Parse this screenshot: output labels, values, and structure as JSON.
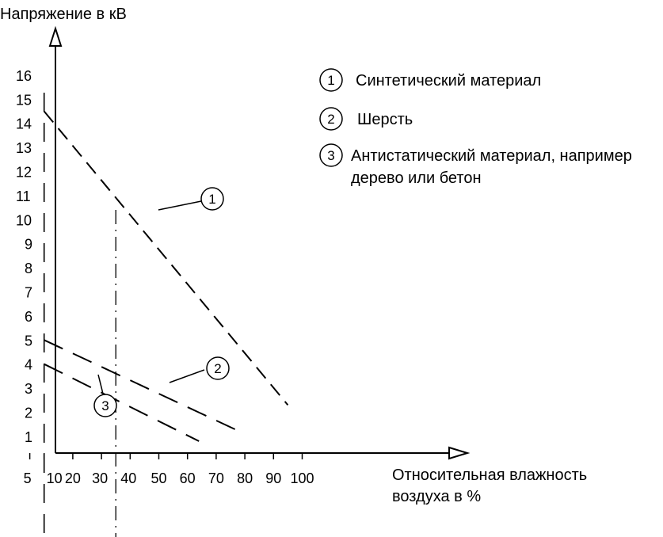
{
  "chart_data": {
    "type": "line",
    "ylabel": "Напряжение в кВ",
    "xlabel_lines": [
      "Относительная влажность",
      "воздуха в %"
    ],
    "x_ticks": [
      5,
      10,
      20,
      30,
      40,
      50,
      60,
      70,
      80,
      90,
      100
    ],
    "y_ticks": [
      1,
      2,
      3,
      4,
      5,
      6,
      7,
      8,
      9,
      10,
      11,
      12,
      13,
      14,
      15,
      16
    ],
    "xlim": [
      0,
      110
    ],
    "ylim": [
      0,
      17
    ],
    "series": [
      {
        "name": "Синтетический материал",
        "marker": "1",
        "x": [
          10,
          95
        ],
        "y": [
          14.5,
          2.3
        ]
      },
      {
        "name": "Шерсть",
        "marker": "2",
        "x": [
          10,
          80
        ],
        "y": [
          5,
          1.1
        ]
      },
      {
        "name": "Антистатический материал, например дерево или бетон",
        "marker": "3",
        "x": [
          10,
          64
        ],
        "y": [
          4,
          0.8
        ]
      }
    ],
    "legend": {
      "placement": "top-right",
      "items": [
        {
          "marker": "1",
          "lines": [
            "Синтетический материал"
          ]
        },
        {
          "marker": "2",
          "lines": [
            "Шерсть"
          ]
        },
        {
          "marker": "3",
          "lines": [
            "Антистатический материал, например",
            "дерево или бетон"
          ]
        }
      ]
    },
    "reference_lines_x": [
      10,
      35
    ]
  }
}
